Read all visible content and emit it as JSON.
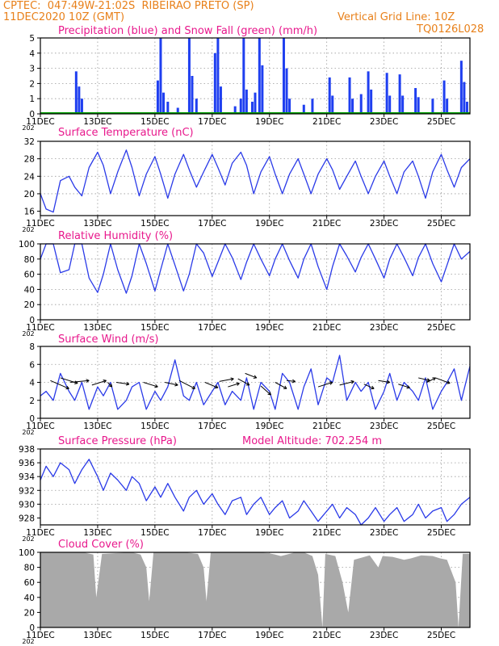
{
  "header": {
    "line1": "CPTEC:  047:49W-21:02S  RIBEIRAO PRETO (SP)",
    "line2": "11DEC2020 10Z (GMT)",
    "grid_note": "Vertical Grid Line: 10Z",
    "code": "TQ0126L028",
    "year_stub": "202"
  },
  "x_axis": {
    "labels": [
      "11DEC",
      "13DEC",
      "15DEC",
      "17DEC",
      "19DEC",
      "21DEC",
      "23DEC",
      "25DEC"
    ]
  },
  "colors": {
    "header": "#e8801a",
    "title": "#e8188c",
    "precip": "#1f3ff0",
    "snow": "#00a000",
    "line": "#2a3ae8",
    "cloud": "#a9a9a9",
    "grid": "#9a9a9a"
  },
  "chart_data": [
    {
      "id": "precip",
      "type": "bar",
      "title": "Precipitation (blue) and Snow Fall (green) (mm/h)",
      "ylim": [
        0,
        5
      ],
      "yticks": [
        "0",
        "1",
        "2",
        "3",
        "4",
        "5"
      ],
      "bars": [
        [
          1.25,
          2.8
        ],
        [
          1.35,
          1.8
        ],
        [
          1.45,
          1.0
        ],
        [
          4.1,
          2.2
        ],
        [
          4.2,
          5.0
        ],
        [
          4.3,
          1.4
        ],
        [
          4.45,
          0.8
        ],
        [
          4.8,
          0.4
        ],
        [
          5.2,
          5.0
        ],
        [
          5.3,
          2.5
        ],
        [
          5.45,
          1.0
        ],
        [
          6.1,
          4.0
        ],
        [
          6.2,
          5.0
        ],
        [
          6.3,
          1.8
        ],
        [
          6.8,
          0.5
        ],
        [
          7.0,
          1.0
        ],
        [
          7.1,
          5.0
        ],
        [
          7.2,
          1.6
        ],
        [
          7.4,
          0.8
        ],
        [
          7.5,
          1.4
        ],
        [
          7.65,
          5.0
        ],
        [
          7.75,
          3.2
        ],
        [
          8.5,
          5.0
        ],
        [
          8.6,
          3.0
        ],
        [
          8.7,
          1.0
        ],
        [
          9.2,
          0.6
        ],
        [
          9.5,
          1.0
        ],
        [
          10.1,
          2.4
        ],
        [
          10.2,
          1.2
        ],
        [
          10.8,
          2.4
        ],
        [
          10.9,
          1.0
        ],
        [
          11.2,
          1.3
        ],
        [
          11.45,
          2.8
        ],
        [
          11.55,
          1.6
        ],
        [
          12.1,
          2.7
        ],
        [
          12.2,
          1.2
        ],
        [
          12.55,
          2.6
        ],
        [
          12.65,
          1.2
        ],
        [
          13.1,
          1.7
        ],
        [
          13.2,
          1.1
        ],
        [
          13.7,
          1.0
        ],
        [
          14.1,
          2.2
        ],
        [
          14.2,
          1.0
        ],
        [
          14.7,
          3.5
        ],
        [
          14.8,
          2.1
        ],
        [
          14.9,
          0.8
        ]
      ],
      "snow": 0
    },
    {
      "id": "temp",
      "type": "line",
      "title": "Surface Temperature (nC)",
      "ylim": [
        15,
        32
      ],
      "yticks": [
        "16",
        "20",
        "24",
        "28",
        "32"
      ],
      "x": [
        0,
        0.2,
        0.45,
        0.7,
        1.0,
        1.2,
        1.45,
        1.7,
        2.0,
        2.2,
        2.45,
        2.7,
        3.0,
        3.2,
        3.45,
        3.7,
        4.0,
        4.2,
        4.45,
        4.7,
        5.0,
        5.2,
        5.45,
        5.7,
        6.0,
        6.2,
        6.45,
        6.7,
        7.0,
        7.2,
        7.45,
        7.7,
        8.0,
        8.2,
        8.45,
        8.7,
        9.0,
        9.2,
        9.45,
        9.7,
        10.0,
        10.2,
        10.45,
        10.7,
        11.0,
        11.2,
        11.45,
        11.7,
        12.0,
        12.2,
        12.45,
        12.7,
        13.0,
        13.2,
        13.45,
        13.7,
        14.0,
        14.2,
        14.45,
        14.7,
        15.0
      ],
      "y": [
        20,
        16.5,
        15.8,
        23,
        24,
        21.5,
        19.5,
        26,
        29.5,
        26.5,
        20,
        25,
        30,
        26,
        19.5,
        24.5,
        28.5,
        24.5,
        19,
        24.5,
        29,
        25.5,
        21.5,
        25,
        29,
        26,
        22,
        27,
        29.5,
        26.5,
        20,
        25,
        28.5,
        24.5,
        20,
        24.5,
        28,
        24.5,
        20,
        24.5,
        28,
        25.5,
        21,
        24,
        27.5,
        24,
        20,
        24,
        27.5,
        24,
        20,
        25,
        27.5,
        24,
        19,
        25,
        29,
        25.5,
        21.5,
        26,
        28
      ]
    },
    {
      "id": "rh",
      "type": "line",
      "title": "Relative Humidity (%)",
      "ylim": [
        0,
        100
      ],
      "yticks": [
        "0",
        "20",
        "40",
        "60",
        "80",
        "100"
      ],
      "x": [
        0,
        0.2,
        0.45,
        0.7,
        1.0,
        1.2,
        1.45,
        1.7,
        2.0,
        2.2,
        2.45,
        2.7,
        3.0,
        3.2,
        3.45,
        3.7,
        4.0,
        4.2,
        4.45,
        4.7,
        5.0,
        5.2,
        5.45,
        5.7,
        6.0,
        6.2,
        6.45,
        6.7,
        7.0,
        7.2,
        7.45,
        7.7,
        8.0,
        8.2,
        8.45,
        8.7,
        9.0,
        9.2,
        9.45,
        9.7,
        10.0,
        10.2,
        10.45,
        10.7,
        11.0,
        11.2,
        11.45,
        11.7,
        12.0,
        12.2,
        12.45,
        12.7,
        13.0,
        13.2,
        13.45,
        13.7,
        14.0,
        14.2,
        14.45,
        14.7,
        15.0
      ],
      "y": [
        80,
        100,
        100,
        62,
        66,
        100,
        100,
        55,
        36,
        60,
        100,
        66,
        35,
        58,
        100,
        74,
        38,
        66,
        100,
        72,
        38,
        60,
        100,
        88,
        57,
        76,
        100,
        82,
        53,
        76,
        100,
        80,
        58,
        80,
        100,
        78,
        55,
        80,
        100,
        70,
        40,
        70,
        100,
        84,
        63,
        82,
        100,
        80,
        55,
        80,
        100,
        82,
        58,
        82,
        100,
        74,
        50,
        72,
        100,
        80,
        90
      ]
    },
    {
      "id": "wind",
      "type": "line",
      "title": "Surface Wind (m/s)",
      "ylim": [
        0,
        8
      ],
      "yticks": [
        "0",
        "2",
        "4",
        "6",
        "8"
      ],
      "x": [
        0,
        0.2,
        0.45,
        0.7,
        1.0,
        1.2,
        1.45,
        1.7,
        2.0,
        2.2,
        2.45,
        2.7,
        3.0,
        3.2,
        3.45,
        3.7,
        4.0,
        4.2,
        4.45,
        4.7,
        5.0,
        5.2,
        5.45,
        5.7,
        6.0,
        6.2,
        6.45,
        6.7,
        7.0,
        7.2,
        7.45,
        7.7,
        8.0,
        8.2,
        8.45,
        8.7,
        9.0,
        9.2,
        9.45,
        9.7,
        10.0,
        10.2,
        10.45,
        10.7,
        11.0,
        11.2,
        11.45,
        11.7,
        12.0,
        12.2,
        12.45,
        12.7,
        13.0,
        13.2,
        13.45,
        13.7,
        14.0,
        14.2,
        14.45,
        14.7,
        15.0
      ],
      "y": [
        2.5,
        3,
        2,
        5,
        3,
        2,
        4,
        1,
        3.5,
        2.5,
        4,
        1,
        2,
        3.5,
        4,
        1,
        3,
        2,
        3.5,
        6.5,
        2.5,
        2,
        4,
        1.5,
        3,
        4,
        1.5,
        3,
        2,
        4.5,
        1,
        4,
        3,
        1,
        5,
        4,
        1,
        3.5,
        5.5,
        1.5,
        4.5,
        4,
        7,
        2,
        4,
        3,
        4,
        1,
        3,
        5,
        2,
        4,
        3,
        2,
        4.5,
        1,
        3,
        4,
        5.5,
        2,
        5.8
      ],
      "arrows": [
        [
          0.35,
          4.2,
          1.0,
          3.3
        ],
        [
          0.7,
          4.5,
          1.3,
          3.9
        ],
        [
          1.05,
          4.0,
          1.7,
          4.2
        ],
        [
          1.8,
          3.7,
          2.3,
          4.2
        ],
        [
          2.35,
          4.0,
          2.5,
          3.5
        ],
        [
          2.65,
          4.0,
          3.1,
          3.8
        ],
        [
          3.6,
          4.0,
          4.1,
          3.5
        ],
        [
          4.35,
          4.0,
          4.8,
          3.7
        ],
        [
          4.85,
          4.2,
          5.4,
          3.3
        ],
        [
          5.75,
          4.0,
          6.2,
          3.4
        ],
        [
          6.25,
          4.1,
          6.75,
          4.4
        ],
        [
          6.55,
          3.5,
          6.95,
          3.9
        ],
        [
          6.9,
          4.4,
          7.3,
          3.7
        ],
        [
          7.15,
          5.0,
          7.55,
          4.5
        ],
        [
          7.7,
          3.6,
          8.05,
          2.6
        ],
        [
          8.2,
          4.0,
          8.6,
          3.3
        ],
        [
          8.6,
          4.2,
          8.9,
          4.1
        ],
        [
          9.7,
          3.5,
          10.2,
          4.0
        ],
        [
          10.45,
          3.7,
          10.95,
          4.1
        ],
        [
          11.3,
          3.8,
          11.65,
          3.3
        ],
        [
          11.8,
          4.2,
          12.2,
          4.0
        ],
        [
          12.5,
          3.8,
          12.9,
          3.4
        ],
        [
          13.2,
          4.5,
          13.6,
          4.2
        ],
        [
          13.5,
          4.0,
          13.8,
          4.5
        ],
        [
          13.8,
          4.5,
          14.3,
          3.9
        ]
      ]
    },
    {
      "id": "pressure",
      "type": "line",
      "title": "Surface Pressure (hPa)",
      "annotation": "Model Altitude: 702.254 m",
      "ylim": [
        927,
        938
      ],
      "yticks": [
        "928",
        "930",
        "932",
        "934",
        "936",
        "938"
      ],
      "x": [
        0,
        0.2,
        0.45,
        0.7,
        1.0,
        1.2,
        1.45,
        1.7,
        2.0,
        2.2,
        2.45,
        2.7,
        3.0,
        3.2,
        3.45,
        3.7,
        4.0,
        4.2,
        4.45,
        4.7,
        5.0,
        5.2,
        5.45,
        5.7,
        6.0,
        6.2,
        6.45,
        6.7,
        7.0,
        7.2,
        7.45,
        7.7,
        8.0,
        8.2,
        8.45,
        8.7,
        9.0,
        9.2,
        9.45,
        9.7,
        10.0,
        10.2,
        10.45,
        10.7,
        11.0,
        11.2,
        11.45,
        11.7,
        12.0,
        12.2,
        12.45,
        12.7,
        13.0,
        13.2,
        13.45,
        13.7,
        14.0,
        14.2,
        14.45,
        14.7,
        15.0
      ],
      "y": [
        933.5,
        935.5,
        934,
        936,
        935,
        933,
        935,
        936.5,
        934,
        932,
        934.5,
        933.5,
        932,
        934,
        933,
        930.5,
        932.5,
        931,
        933,
        931,
        929,
        931,
        932,
        930,
        931.5,
        930,
        928.5,
        930.5,
        931,
        928.5,
        930,
        931,
        928.5,
        929.5,
        930.5,
        928,
        929,
        930.5,
        929,
        927.5,
        929,
        930,
        928,
        929.5,
        928.5,
        926.5,
        928,
        929.5,
        927.5,
        928.5,
        929.5,
        927.5,
        928.5,
        930,
        928,
        929,
        929.5,
        927.5,
        928.5,
        930,
        931
      ]
    },
    {
      "id": "cloud",
      "type": "area",
      "title": "Cloud Cover (%)",
      "ylim": [
        0,
        100
      ],
      "yticks": [
        "0",
        "20",
        "40",
        "60",
        "80",
        "100"
      ],
      "x": [
        0,
        0.3,
        0.8,
        1.5,
        1.85,
        1.95,
        2.15,
        2.7,
        3.2,
        3.5,
        3.7,
        3.8,
        3.95,
        4.3,
        5.0,
        5.5,
        5.7,
        5.8,
        5.95,
        6.8,
        7.5,
        7.95,
        8.2,
        8.4,
        8.9,
        9.2,
        9.5,
        9.7,
        9.85,
        9.95,
        10.3,
        10.55,
        10.75,
        10.95,
        11.5,
        11.8,
        11.95,
        12.3,
        12.7,
        12.95,
        13.3,
        13.7,
        13.95,
        14.2,
        14.5,
        14.6,
        14.75,
        15.0
      ],
      "y": [
        100,
        100,
        100,
        100,
        97,
        40,
        98,
        99,
        100,
        97,
        80,
        35,
        100,
        100,
        100,
        98,
        80,
        35,
        100,
        100,
        100,
        99,
        97,
        95,
        100,
        100,
        95,
        70,
        0,
        98,
        95,
        60,
        20,
        90,
        96,
        80,
        95,
        94,
        90,
        92,
        96,
        95,
        92,
        90,
        60,
        0,
        98,
        98
      ]
    }
  ]
}
